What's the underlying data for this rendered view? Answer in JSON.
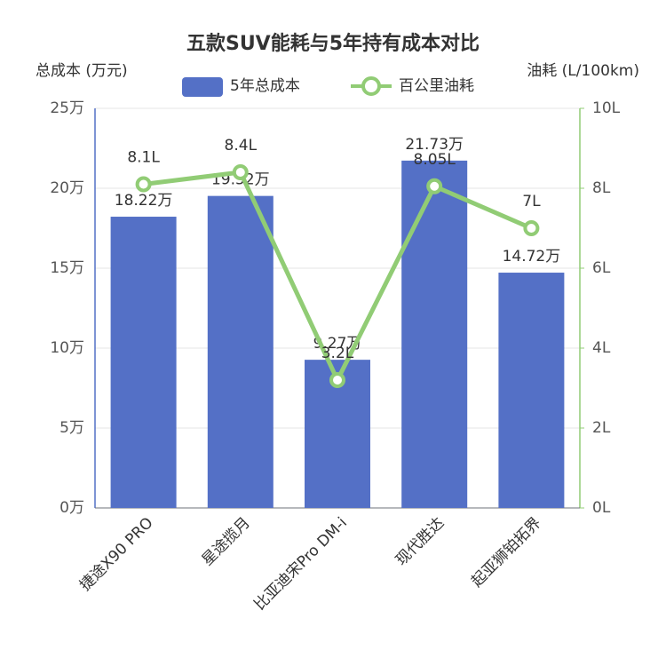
{
  "chart_data": {
    "type": "bar-line",
    "title": "五款SUV能耗与5年持有成本对比",
    "y_label": "总成本 (万元)",
    "y2_label": "油耗 (L/100km)",
    "categories": [
      "捷途X90 PRO",
      "星途揽月",
      "比亚迪宋Pro DM-i",
      "现代胜达",
      "起亚狮铂拓界"
    ],
    "series": [
      {
        "name": "5年总成本",
        "type": "bar",
        "color": "#5470c6",
        "axis": "y",
        "values": [
          18.22,
          19.52,
          9.27,
          21.73,
          14.72
        ],
        "value_labels": [
          "18.22万",
          "19.52万",
          "9.27万",
          "21.73万",
          "14.72万"
        ]
      },
      {
        "name": "百公里油耗",
        "type": "line",
        "color": "#91cc75",
        "axis": "y2",
        "values": [
          8.1,
          8.4,
          3.2,
          8.05,
          7
        ],
        "value_labels": [
          "8.1L",
          "8.4L",
          "3.2L",
          "8.05L",
          "7L"
        ]
      }
    ],
    "ylim": [
      0,
      25
    ],
    "yticks": [
      {
        "value": 0,
        "label": "0万"
      },
      {
        "value": 5,
        "label": "5万"
      },
      {
        "value": 10,
        "label": "10万"
      },
      {
        "value": 15,
        "label": "15万"
      },
      {
        "value": 20,
        "label": "20万"
      },
      {
        "value": 25,
        "label": "25万"
      }
    ],
    "y2lim": [
      0,
      10
    ],
    "y2ticks": [
      {
        "value": 0,
        "label": "0L"
      },
      {
        "value": 2,
        "label": "2L"
      },
      {
        "value": 4,
        "label": "4L"
      },
      {
        "value": 6,
        "label": "6L"
      },
      {
        "value": 8,
        "label": "8L"
      },
      {
        "value": 10,
        "label": "10L"
      }
    ],
    "grid": true
  }
}
